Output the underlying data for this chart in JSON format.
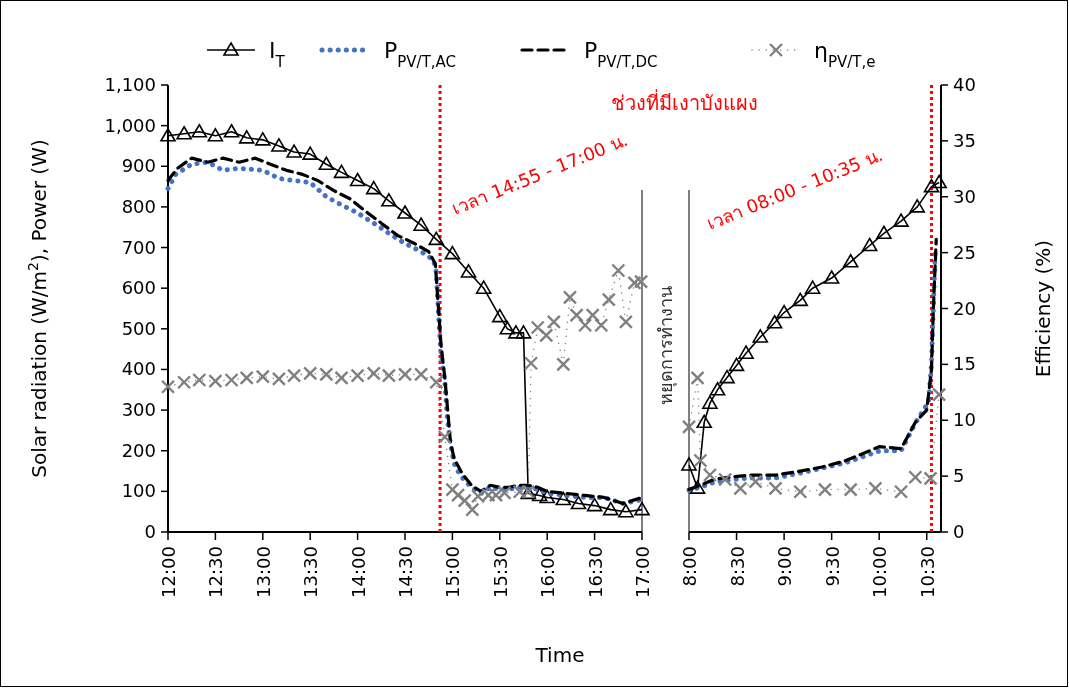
{
  "chart_data": [
    {
      "type": "line",
      "xlabel": "Time",
      "ylabel": "Solar radiation (W/m$^{2}$), Power (W)",
      "legend": "top",
      "grid": false,
      "tick_labels": "xy",
      "xlim": [
        12,
        17
      ],
      "xticks": [
        {
          "value": 12,
          "label": "12:00"
        },
        {
          "value": 12.5,
          "label": "12:30"
        },
        {
          "value": 13,
          "label": "13:00"
        },
        {
          "value": 13.5,
          "label": "13:30"
        },
        {
          "value": 14,
          "label": "14:00"
        },
        {
          "value": 14.5,
          "label": "14:30"
        },
        {
          "value": 15,
          "label": "15:00"
        },
        {
          "value": 15.5,
          "label": "15:30"
        },
        {
          "value": 16,
          "label": "16:00"
        },
        {
          "value": 16.5,
          "label": "16:30"
        },
        {
          "value": 17,
          "label": "17:00"
        }
      ],
      "ylim": [
        0,
        1100
      ],
      "yticks": [
        0,
        100,
        200,
        300,
        400,
        500,
        600,
        700,
        800,
        900,
        {
          "value": 1000,
          "label": "1,000"
        },
        {
          "value": 1100,
          "label": "1,100"
        }
      ],
      "y2lim": [
        0,
        40
      ],
      "ref_lines": [
        {
          "axis": "x",
          "value": 14.87,
          "color": "#ff0000",
          "line_style": "dotted"
        }
      ],
      "annotations": [
        "ช่วงที่มีเงาบังแผง",
        "เวลา 14:55 - 17:00 น.",
        "หยุดการทำงาน"
      ],
      "series": [
        {
          "name": "I$_{T}$",
          "color": "#000000",
          "marker": "triangle",
          "line_style": "solid",
          "x": [
            12.0,
            12.17,
            12.33,
            12.5,
            12.67,
            12.83,
            13.0,
            13.17,
            13.33,
            13.5,
            13.67,
            13.83,
            14.0,
            14.17,
            14.33,
            14.5,
            14.67,
            14.83,
            15.0,
            15.17,
            15.33,
            15.5,
            15.58,
            15.67,
            15.75,
            15.8,
            15.92,
            16.0,
            16.17,
            16.33,
            16.5,
            16.67,
            16.83,
            17.0
          ],
          "values": [
            975,
            980,
            985,
            975,
            985,
            970,
            965,
            950,
            935,
            930,
            905,
            885,
            865,
            845,
            815,
            785,
            755,
            720,
            685,
            640,
            600,
            530,
            500,
            490,
            490,
            95,
            90,
            85,
            80,
            70,
            65,
            55,
            50,
            55
          ]
        },
        {
          "name": "P$_{PV/T,AC}$",
          "color": "#4472c4",
          "marker": "none",
          "line_style": "dotted",
          "x": [
            12.0,
            12.08,
            12.25,
            12.42,
            12.58,
            12.75,
            13.0,
            13.17,
            13.33,
            13.5,
            13.67,
            13.83,
            14.0,
            14.17,
            14.33,
            14.5,
            14.67,
            14.8,
            14.83,
            14.85,
            14.87,
            14.89,
            14.92,
            14.94,
            14.97,
            15.0,
            15.03,
            15.1,
            15.2,
            15.3,
            15.4,
            15.5,
            15.6,
            15.7,
            15.8,
            15.9,
            16.0,
            16.2,
            16.4,
            16.6,
            16.8,
            17.0
          ],
          "values": [
            845,
            880,
            905,
            910,
            890,
            895,
            890,
            870,
            865,
            860,
            825,
            805,
            785,
            760,
            735,
            710,
            690,
            670,
            640,
            550,
            470,
            420,
            370,
            300,
            230,
            190,
            160,
            135,
            110,
            95,
            110,
            105,
            105,
            110,
            110,
            105,
            95,
            90,
            85,
            85,
            70,
            80
          ]
        },
        {
          "name": "P$_{PV/T,DC}$",
          "color": "#000000",
          "marker": "none",
          "line_style": "dashed",
          "x": [
            12.0,
            12.1,
            12.25,
            12.42,
            12.58,
            12.75,
            12.92,
            13.08,
            13.25,
            13.42,
            13.58,
            13.75,
            13.92,
            14.08,
            14.25,
            14.42,
            14.6,
            14.75,
            14.82,
            14.85,
            14.88,
            14.92,
            14.95,
            14.98,
            15.02,
            15.1,
            15.2,
            15.3,
            15.4,
            15.5,
            15.6,
            15.7,
            15.8,
            15.9,
            16.0,
            16.2,
            16.4,
            16.6,
            16.8,
            17.0
          ],
          "values": [
            865,
            895,
            920,
            910,
            920,
            910,
            920,
            905,
            890,
            880,
            865,
            840,
            820,
            790,
            760,
            730,
            710,
            690,
            660,
            560,
            460,
            380,
            300,
            220,
            180,
            145,
            115,
            100,
            115,
            110,
            110,
            115,
            115,
            110,
            100,
            95,
            90,
            85,
            70,
            85
          ]
        },
        {
          "name": "η$_{PV/T,e}$",
          "color": "#808080",
          "marker": "cross",
          "line_style": "dotted",
          "axis": "y2",
          "x": [
            12.0,
            12.17,
            12.33,
            12.5,
            12.67,
            12.83,
            13.0,
            13.17,
            13.33,
            13.5,
            13.67,
            13.83,
            14.0,
            14.17,
            14.33,
            14.5,
            14.67,
            14.83,
            14.92,
            15.0,
            15.06,
            15.13,
            15.21,
            15.27,
            15.38,
            15.46,
            15.55,
            15.71,
            15.8,
            15.83,
            15.9,
            15.99,
            16.07,
            16.17,
            16.24,
            16.31,
            16.4,
            16.48,
            16.57,
            16.65,
            16.75,
            16.83,
            16.92,
            16.99
          ],
          "values": [
            13.0,
            13.4,
            13.6,
            13.5,
            13.6,
            13.8,
            13.9,
            13.7,
            14.0,
            14.2,
            14.1,
            13.8,
            14.0,
            14.2,
            14.0,
            14.1,
            14.1,
            13.4,
            8.5,
            3.8,
            3.3,
            2.8,
            2.0,
            3.2,
            3.3,
            3.3,
            3.5,
            3.6,
            3.6,
            15.1,
            18.3,
            17.6,
            18.8,
            15.0,
            21.0,
            19.4,
            18.5,
            19.4,
            18.5,
            20.8,
            23.4,
            18.8,
            22.3,
            22.4
          ]
        }
      ]
    },
    {
      "type": "line",
      "grid": false,
      "legend": false,
      "tick_labels": "xy2",
      "y2label": "Efficiency  (%)",
      "xlim": [
        8,
        10.65
      ],
      "xticks": [
        {
          "value": 8,
          "label": "8:00"
        },
        {
          "value": 8.5,
          "label": "8:30"
        },
        {
          "value": 9,
          "label": "9:00"
        },
        {
          "value": 9.5,
          "label": "9:30"
        },
        {
          "value": 10,
          "label": "10:00"
        },
        {
          "value": 10.5,
          "label": "10:30"
        }
      ],
      "ylim": [
        0,
        1100
      ],
      "y2lim": [
        0,
        40
      ],
      "y2ticks": [
        0,
        5,
        10,
        15,
        20,
        25,
        30,
        35,
        40
      ],
      "ref_lines": [
        {
          "axis": "x",
          "value": 10.55,
          "color": "#ff0000",
          "line_style": "dotted"
        }
      ],
      "annotations": [
        "เวลา 08:00 - 10:35 น."
      ],
      "series": [
        {
          "color": "#000000",
          "marker": "triangle",
          "line_style": "solid",
          "x": [
            8.0,
            8.09,
            8.16,
            8.22,
            8.3,
            8.4,
            8.5,
            8.6,
            8.75,
            8.9,
            9.0,
            9.17,
            9.3,
            9.5,
            9.7,
            9.9,
            10.05,
            10.23,
            10.4,
            10.55,
            10.63
          ],
          "values": [
            165,
            108,
            270,
            317,
            350,
            380,
            410,
            440,
            480,
            515,
            540,
            570,
            600,
            625,
            665,
            705,
            735,
            765,
            800,
            850,
            860
          ]
        },
        {
          "color": "#4472c4",
          "marker": "none",
          "line_style": "dotted",
          "x": [
            8.0,
            8.12,
            8.27,
            8.43,
            8.64,
            8.91,
            9.17,
            9.64,
            10.01,
            10.23,
            10.38,
            10.52,
            10.55,
            10.57,
            10.59
          ],
          "values": [
            103,
            110,
            123,
            128,
            133,
            133,
            145,
            170,
            200,
            200,
            268,
            320,
            415,
            553,
            694
          ]
        },
        {
          "color": "#000000",
          "marker": "none",
          "line_style": "dashed",
          "x": [
            8.0,
            8.12,
            8.27,
            8.43,
            8.64,
            8.91,
            9.17,
            9.4,
            9.64,
            9.85,
            10.0,
            10.23,
            10.38,
            10.5,
            10.55,
            10.57,
            10.6
          ],
          "values": [
            105,
            115,
            130,
            135,
            140,
            140,
            150,
            160,
            175,
            195,
            210,
            205,
            270,
            300,
            400,
            550,
            720
          ]
        },
        {
          "color": "#808080",
          "marker": "cross",
          "line_style": "dotted",
          "axis": "y2",
          "x": [
            8.0,
            8.09,
            8.12,
            8.22,
            8.38,
            8.54,
            8.7,
            8.91,
            9.17,
            9.43,
            9.7,
            9.96,
            10.23,
            10.38,
            10.54,
            10.63
          ],
          "values": [
            9.4,
            13.8,
            6.4,
            5.1,
            4.7,
            3.9,
            4.5,
            3.9,
            3.6,
            3.8,
            3.8,
            3.9,
            3.6,
            4.9,
            4.8,
            12.3
          ]
        }
      ]
    }
  ]
}
